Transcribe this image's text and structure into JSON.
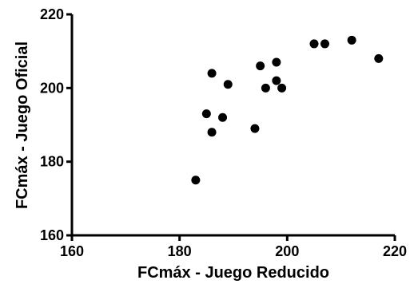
{
  "chart_data": {
    "type": "scatter",
    "title": "",
    "xlabel": "FCmáx - Juego Reducido",
    "ylabel": "FCmáx - Juego Oficial",
    "xlim": [
      160,
      220
    ],
    "ylim": [
      160,
      220
    ],
    "x_ticks": [
      160,
      180,
      200,
      220
    ],
    "y_ticks": [
      160,
      180,
      200,
      220
    ],
    "x_tick_labels": [
      "160",
      "180",
      "200",
      "220"
    ],
    "y_tick_labels": [
      "160",
      "180",
      "200",
      "220"
    ],
    "grid": false,
    "legend": "none",
    "marker_color": "#000000",
    "series": [
      {
        "points": [
          {
            "x": 183,
            "y": 175
          },
          {
            "x": 185,
            "y": 193
          },
          {
            "x": 186,
            "y": 204
          },
          {
            "x": 186,
            "y": 188
          },
          {
            "x": 188,
            "y": 192
          },
          {
            "x": 189,
            "y": 201
          },
          {
            "x": 194,
            "y": 189
          },
          {
            "x": 195,
            "y": 206
          },
          {
            "x": 196,
            "y": 200
          },
          {
            "x": 198,
            "y": 207
          },
          {
            "x": 198,
            "y": 202
          },
          {
            "x": 199,
            "y": 200
          },
          {
            "x": 205,
            "y": 212
          },
          {
            "x": 207,
            "y": 212
          },
          {
            "x": 212,
            "y": 213
          },
          {
            "x": 217,
            "y": 208
          }
        ]
      }
    ]
  }
}
